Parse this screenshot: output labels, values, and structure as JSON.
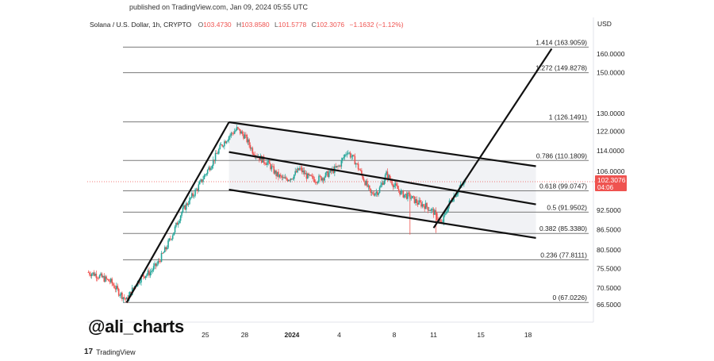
{
  "published": "published on TradingView.com, Jan 09, 2024 05:55 UTC",
  "header": {
    "symbol": "Solana / U.S. Dollar, 1h, CRYPTO",
    "o_label": "O",
    "o": "103.4730",
    "h_label": "H",
    "h": "103.8580",
    "l_label": "L",
    "l": "101.5778",
    "c_label": "C",
    "c": "102.3076",
    "change": "−1.1632 (−1.12%)"
  },
  "currency": "USD",
  "watermark": "@ali_charts",
  "brand": {
    "icon": "tradingview-logo-icon",
    "label": "TradingView"
  },
  "colors": {
    "up": "#26a69a",
    "down": "#ef5350",
    "price_tag": "#ef5350",
    "lines": "#111111",
    "channel_fill": "#e8eaee"
  },
  "chart_data": {
    "type": "candlestick",
    "title": "",
    "xlabel": "",
    "ylabel": "",
    "y_scale": "log",
    "ylim": [
      64.5,
      172
    ],
    "grid": false,
    "x_ticks": [
      "25",
      "28",
      "2024",
      "4",
      "8",
      "11",
      "15",
      "18"
    ],
    "y_ticks": [
      "66.5000",
      "70.5000",
      "75.5000",
      "80.5000",
      "86.5000",
      "92.5000",
      "106.0000",
      "114.0000",
      "122.0000",
      "130.0000",
      "150.0000",
      "160.0000"
    ],
    "last_price": {
      "value": "102.3076",
      "timer": "04:06"
    },
    "fib_levels": [
      {
        "label": "1.414 (163.9059)",
        "value": 163.9059
      },
      {
        "label": "1.272 (149.8278)",
        "value": 149.8278
      },
      {
        "label": "1 (126.1491)",
        "value": 126.1491
      },
      {
        "label": "0.786 (110.1809)",
        "value": 110.1809
      },
      {
        "label": "0.618 (99.0747)",
        "value": 99.0747
      },
      {
        "label": "0.5 (91.9502)",
        "value": 91.9502
      },
      {
        "label": "0.382 (85.3380)",
        "value": 85.338
      },
      {
        "label": "0.236 (77.8111)",
        "value": 77.8111
      },
      {
        "label": "0 (67.0226)",
        "value": 67.0226
      }
    ],
    "price_path": [
      [
        0,
        74.5
      ],
      [
        1,
        74.0
      ],
      [
        2,
        73.0
      ],
      [
        3,
        72.0
      ],
      [
        4,
        69.5
      ],
      [
        5,
        67.5
      ],
      [
        6,
        71.0
      ],
      [
        7,
        73.5
      ],
      [
        8,
        74.5
      ],
      [
        9,
        77.0
      ],
      [
        10,
        81.0
      ],
      [
        11,
        86.0
      ],
      [
        12,
        92.0
      ],
      [
        13,
        96.0
      ],
      [
        14,
        100.0
      ],
      [
        15,
        105.0
      ],
      [
        16,
        110.0
      ],
      [
        17,
        116.0
      ],
      [
        18,
        120.0
      ],
      [
        19,
        123.0
      ],
      [
        20,
        120.0
      ],
      [
        21,
        114.0
      ],
      [
        22,
        111.0
      ],
      [
        23,
        109.0
      ],
      [
        24,
        105.0
      ],
      [
        25,
        103.0
      ],
      [
        26,
        104.0
      ],
      [
        27,
        107.0
      ],
      [
        28,
        104.0
      ],
      [
        29,
        103.0
      ],
      [
        30,
        104.0
      ],
      [
        31,
        106.0
      ],
      [
        32,
        108.0
      ],
      [
        33,
        114.0
      ],
      [
        34,
        110.0
      ],
      [
        35,
        104.0
      ],
      [
        36,
        98.0
      ],
      [
        37,
        99.0
      ],
      [
        38,
        105.0
      ],
      [
        39,
        101.0
      ],
      [
        40,
        98.0
      ],
      [
        41,
        97.0
      ],
      [
        42,
        95.0
      ],
      [
        43,
        94.0
      ],
      [
        44,
        92.0
      ],
      [
        45,
        88.0
      ],
      [
        46,
        95.0
      ],
      [
        47,
        99.0
      ],
      [
        48,
        102.3
      ]
    ],
    "channel": {
      "upper": [
        [
          18,
          126.0
        ],
        [
          57,
          108.0
        ]
      ],
      "middle": [
        [
          18,
          113.5
        ],
        [
          57,
          94.5
        ]
      ],
      "lower": [
        [
          18,
          99.5
        ],
        [
          57,
          84.0
        ]
      ]
    },
    "projection": [
      [
        44,
        87.0
      ],
      [
        59,
        163.0
      ]
    ],
    "impulse": [
      [
        5,
        67.0
      ],
      [
        18,
        126.0
      ]
    ]
  }
}
